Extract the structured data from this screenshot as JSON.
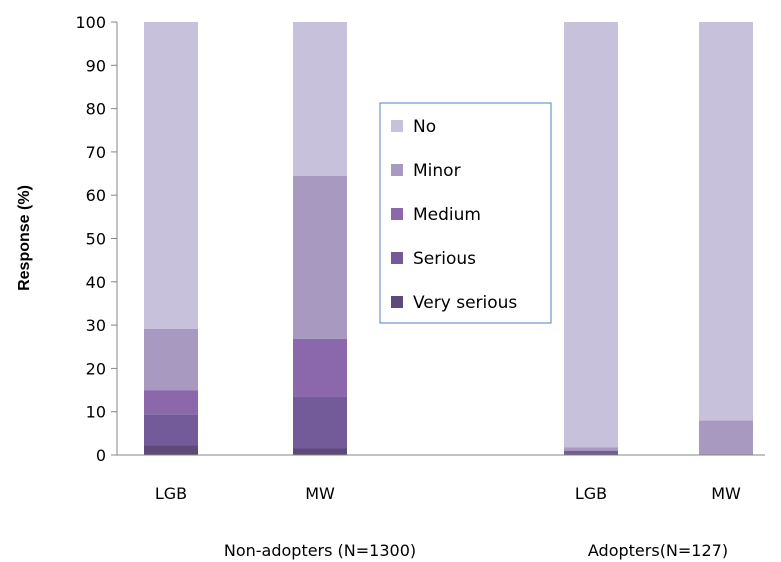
{
  "chart_data": {
    "type": "bar",
    "stacked": true,
    "ylabel": "Response (%)",
    "ylim": [
      0,
      100
    ],
    "yticks": [
      0,
      10,
      20,
      30,
      40,
      50,
      60,
      70,
      80,
      90,
      100
    ],
    "grid": false,
    "legend_position": "center",
    "groups": [
      {
        "label": "Non-adopters (N=1300)",
        "categories": [
          "LGB",
          "MW"
        ]
      },
      {
        "label": "Adopters(N=127)",
        "categories": [
          "LGB",
          "MW"
        ]
      }
    ],
    "categories": [
      "LGB",
      "MW",
      "LGB",
      "MW"
    ],
    "series": [
      {
        "name": "Very serious",
        "color": "#5e4a7a",
        "values": [
          2.2,
          1.5,
          0.4,
          0.0
        ]
      },
      {
        "name": "Serious",
        "color": "#735a98",
        "values": [
          7.2,
          11.9,
          0.6,
          0.0
        ]
      },
      {
        "name": "Medium",
        "color": "#8a68ab",
        "values": [
          5.5,
          13.4,
          0.0,
          0.0
        ]
      },
      {
        "name": "Minor",
        "color": "#a899c0",
        "values": [
          14.2,
          37.7,
          0.8,
          8.0
        ]
      },
      {
        "name": "No",
        "color": "#c8c1dc",
        "values": [
          70.9,
          35.5,
          98.2,
          92.0
        ]
      }
    ],
    "legend_order": [
      "No",
      "Minor",
      "Medium",
      "Serious",
      "Very serious"
    ]
  }
}
